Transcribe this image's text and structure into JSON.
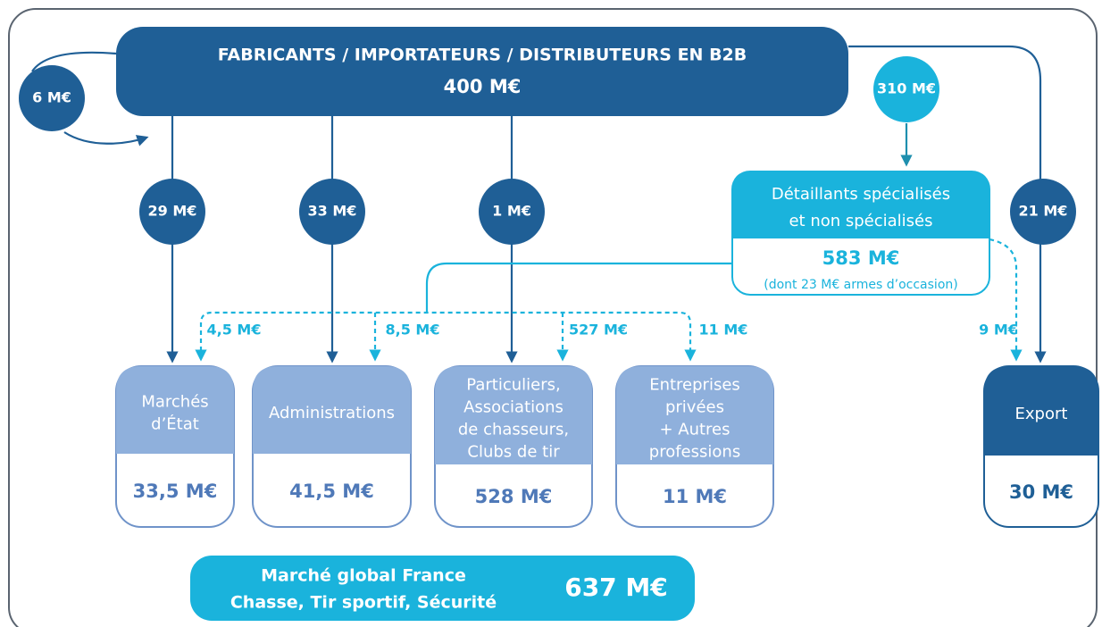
{
  "top": {
    "title": "FABRICANTS / IMPORTATEURS / DISTRIBUTEURS EN B2B",
    "value": "400 M€"
  },
  "loop": {
    "value": "6 M€"
  },
  "retail_inflow": {
    "value": "310 M€"
  },
  "direct_flows": [
    "29 M€",
    "33 M€",
    "1 M€",
    "21 M€"
  ],
  "retail": {
    "lines": [
      "Détaillants spécialisés",
      "et non spécialisés"
    ],
    "value": "583 M€",
    "note": "(dont 23 M€ armes d’occasion)"
  },
  "retail_flows": [
    "4,5 M€",
    "8,5 M€",
    "527 M€",
    "11 M€",
    "9 M€"
  ],
  "destinations": [
    {
      "lines": [
        "Marchés",
        "d’État"
      ],
      "value": "33,5 M€"
    },
    {
      "lines": [
        "Administrations"
      ],
      "value": "41,5 M€"
    },
    {
      "lines": [
        "Particuliers,",
        "Associations",
        "de chasseurs,",
        "Clubs de tir"
      ],
      "value": "528 M€"
    },
    {
      "lines": [
        "Entreprises",
        "privées",
        "+ Autres",
        "professions"
      ],
      "value": "11 M€"
    },
    {
      "lines": [
        "Export"
      ],
      "value": "30 M€"
    }
  ],
  "total": {
    "lines": [
      "Marché global France",
      "Chasse, Tir sportif, Sécurité"
    ],
    "value": "637 M€"
  }
}
